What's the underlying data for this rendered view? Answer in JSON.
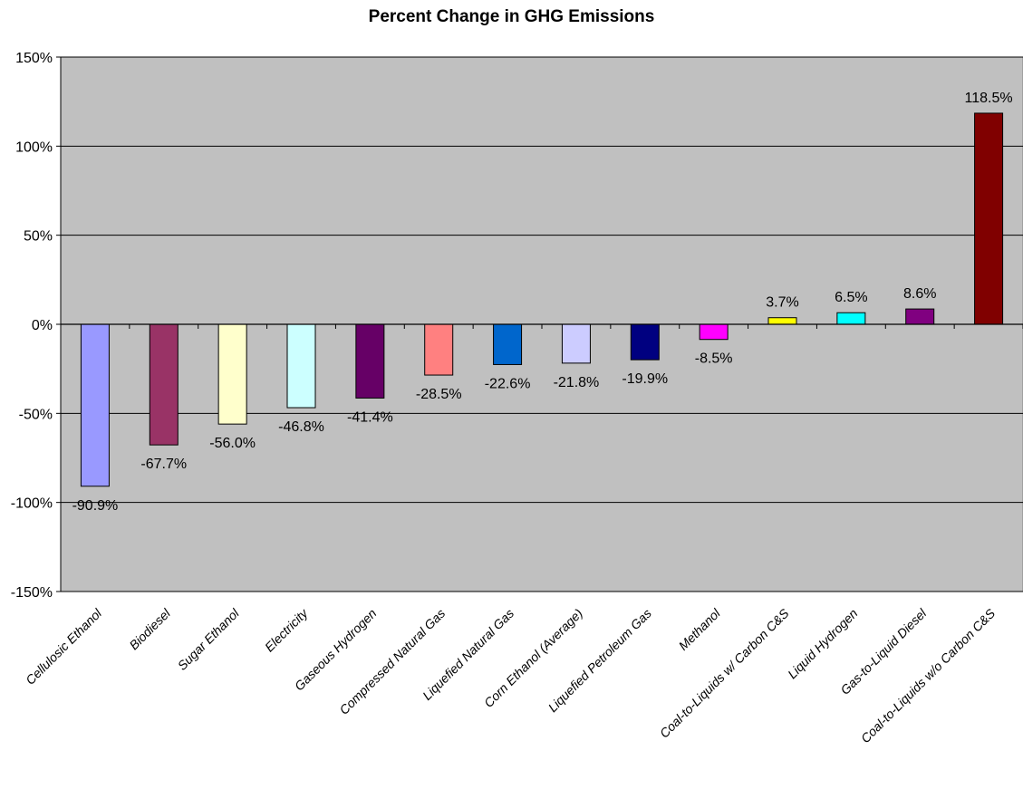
{
  "chart_data": {
    "type": "bar",
    "title": "Percent Change in GHG Emissions",
    "xlabel": "",
    "ylabel": "",
    "ylim": [
      -150,
      150
    ],
    "yticks": [
      "150%",
      "100%",
      "50%",
      "0%",
      "-50%",
      "-100%",
      "-150%"
    ],
    "ytick_values": [
      150,
      100,
      50,
      0,
      -50,
      -100,
      -150
    ],
    "grid": true,
    "plot_background": "#c0c0c0",
    "categories": [
      "Cellulosic Ethanol",
      "Biodiesel",
      "Sugar Ethanol",
      "Electricity",
      "Gaseous Hydrogen",
      "Compressed Natural Gas",
      "Liquefied Natural Gas",
      "Corn Ethanol (Average)",
      "Liquefied Petroleum Gas",
      "Methanol",
      "Coal-to-Liquids w/ Carbon C&S",
      "Liquid Hydrogen",
      "Gas-to-Liquid Diesel",
      "Coal-to-Liquids w/o Carbon C&S"
    ],
    "values": [
      -90.9,
      -67.7,
      -56.0,
      -46.8,
      -41.4,
      -28.5,
      -22.6,
      -21.8,
      -19.9,
      -8.5,
      3.7,
      6.5,
      8.6,
      118.5
    ],
    "data_labels": [
      "-90.9%",
      "-67.7%",
      "-56.0%",
      "-46.8%",
      "-41.4%",
      "-28.5%",
      "-22.6%",
      "-21.8%",
      "-19.9%",
      "-8.5%",
      "3.7%",
      "6.5%",
      "8.6%",
      "118.5%"
    ],
    "colors": [
      "#9999ff",
      "#993366",
      "#ffffcc",
      "#ccffff",
      "#660066",
      "#ff8080",
      "#0066cc",
      "#ccccff",
      "#000080",
      "#ff00ff",
      "#ffff00",
      "#00ffff",
      "#800080",
      "#800000"
    ]
  }
}
